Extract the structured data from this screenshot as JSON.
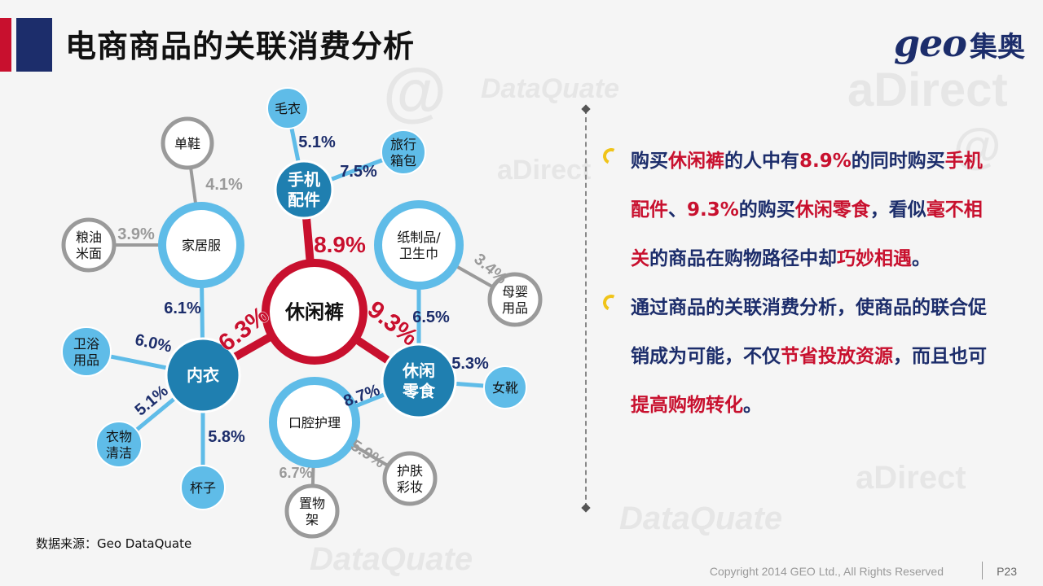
{
  "header": {
    "title": "电商商品的关联消费分析",
    "logo_geo": "geo",
    "logo_cn": "集奥"
  },
  "watermarks": [
    "aDirect",
    "DataQuate",
    "@"
  ],
  "diagram": {
    "nodes": [
      {
        "id": "center",
        "label": "休闲裤",
        "kind": "center"
      },
      {
        "id": "phone",
        "label": "手机\n配件",
        "kind": "hub"
      },
      {
        "id": "snack",
        "label": "休闲\n零食",
        "kind": "hub"
      },
      {
        "id": "underwear",
        "label": "内衣",
        "kind": "hub"
      },
      {
        "id": "homewear",
        "label": "家居服",
        "kind": "ring"
      },
      {
        "id": "paper",
        "label": "纸制品/\n卫生巾",
        "kind": "ring"
      },
      {
        "id": "oral",
        "label": "口腔护理",
        "kind": "ring"
      },
      {
        "id": "sweater",
        "label": "毛衣",
        "kind": "leaf-blue"
      },
      {
        "id": "luggage",
        "label": "旅行\n箱包",
        "kind": "leaf-blue"
      },
      {
        "id": "bath",
        "label": "卫浴\n用品",
        "kind": "leaf-blue"
      },
      {
        "id": "laundry",
        "label": "衣物\n清洁",
        "kind": "leaf-blue"
      },
      {
        "id": "cup",
        "label": "杯子",
        "kind": "leaf-blue"
      },
      {
        "id": "boots",
        "label": "女靴",
        "kind": "leaf-blue"
      },
      {
        "id": "shoes",
        "label": "单鞋",
        "kind": "leaf-gray"
      },
      {
        "id": "grain",
        "label": "粮油\n米面",
        "kind": "leaf-gray"
      },
      {
        "id": "baby",
        "label": "母婴\n用品",
        "kind": "leaf-gray"
      },
      {
        "id": "skincare",
        "label": "护肤\n彩妆",
        "kind": "leaf-gray"
      },
      {
        "id": "shelf",
        "label": "置物\n架",
        "kind": "leaf-gray"
      }
    ],
    "edges": [
      {
        "from": "center",
        "to": "phone",
        "pct": "8.9%",
        "style": "red"
      },
      {
        "from": "center",
        "to": "snack",
        "pct": "9.3%",
        "style": "red"
      },
      {
        "from": "center",
        "to": "underwear",
        "pct": "6.3%",
        "style": "red"
      },
      {
        "from": "phone",
        "to": "sweater",
        "pct": "5.1%",
        "style": "blue"
      },
      {
        "from": "phone",
        "to": "luggage",
        "pct": "7.5%",
        "style": "blue"
      },
      {
        "from": "underwear",
        "to": "homewear",
        "pct": "6.1%",
        "style": "blue"
      },
      {
        "from": "underwear",
        "to": "bath",
        "pct": "6.0%",
        "style": "blue"
      },
      {
        "from": "underwear",
        "to": "laundry",
        "pct": "5.1%",
        "style": "blue"
      },
      {
        "from": "underwear",
        "to": "cup",
        "pct": "5.8%",
        "style": "blue"
      },
      {
        "from": "snack",
        "to": "paper",
        "pct": "6.5%",
        "style": "blue"
      },
      {
        "from": "snack",
        "to": "boots",
        "pct": "5.3%",
        "style": "blue"
      },
      {
        "from": "snack",
        "to": "oral",
        "pct": "8.7%",
        "style": "blue"
      },
      {
        "from": "homewear",
        "to": "shoes",
        "pct": "4.1%",
        "style": "gray"
      },
      {
        "from": "homewear",
        "to": "grain",
        "pct": "3.9%",
        "style": "gray"
      },
      {
        "from": "paper",
        "to": "baby",
        "pct": "3.4%",
        "style": "gray"
      },
      {
        "from": "oral",
        "to": "skincare",
        "pct": "5.9%",
        "style": "gray"
      },
      {
        "from": "oral",
        "to": "shelf",
        "pct": "6.7%",
        "style": "gray"
      }
    ]
  },
  "text": {
    "p1": [
      {
        "t": "购买",
        "h": false
      },
      {
        "t": "休闲裤",
        "h": true
      },
      {
        "t": "的人中有",
        "h": false
      },
      {
        "t": "8.9%",
        "h": true
      },
      {
        "t": "的同时购买",
        "h": false
      },
      {
        "t": "手机配件",
        "h": true
      },
      {
        "t": "、",
        "h": false
      },
      {
        "t": "9.3%",
        "h": true
      },
      {
        "t": "的购买",
        "h": false
      },
      {
        "t": "休闲零食",
        "h": true
      },
      {
        "t": "，看似",
        "h": false
      },
      {
        "t": "毫不相关",
        "h": true
      },
      {
        "t": "的商品在购物路径中却",
        "h": false
      },
      {
        "t": "巧妙相遇",
        "h": true
      },
      {
        "t": "。",
        "h": false
      }
    ],
    "p2": [
      {
        "t": "通过商品的关联消费分析，使商品的联合促销成为可能，不仅",
        "h": false
      },
      {
        "t": "节省投放资源",
        "h": true
      },
      {
        "t": "，而且也可",
        "h": false
      },
      {
        "t": "提高购物转化",
        "h": true
      },
      {
        "t": "。",
        "h": false
      }
    ]
  },
  "footer": {
    "source": "数据来源：Geo DataQuate",
    "copyright": "Copyright 2014 GEO Ltd., All Rights Reserved",
    "page": "P23"
  },
  "colors": {
    "red": "#c8102e",
    "navy": "#1c2d6b",
    "hub_blue": "#1f7fb0",
    "leaf_blue": "#5fbce8",
    "ring_blue": "#5fbce8",
    "gray": "#9a9a9a",
    "bullet": "#f0c419"
  }
}
